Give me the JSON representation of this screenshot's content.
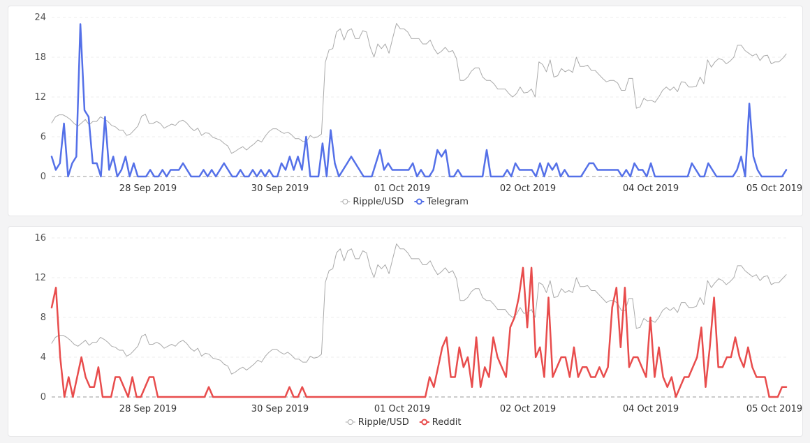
{
  "chart_data": [
    {
      "type": "line",
      "x_labels": [
        "28 Sep 2019",
        "30 Sep 2019",
        "01 Oct 2019",
        "02 Oct 2019",
        "04 Oct 2019",
        "05 Oct 2019"
      ],
      "yticks": [
        "0",
        "6",
        "12",
        "18",
        "24"
      ],
      "ylim": [
        0,
        24
      ],
      "grid": true,
      "legend_position": "bottom-center",
      "series": [
        {
          "name": "Ripple/USD",
          "color": "#aaaaaa",
          "values": [
            8.1,
            9.0,
            9.3,
            9.3,
            9.0,
            8.6,
            8.0,
            7.6,
            8.1,
            8.6,
            7.8,
            8.3,
            8.3,
            9.0,
            8.7,
            8.3,
            7.7,
            7.5,
            7.0,
            7.0,
            6.2,
            6.4,
            7.0,
            7.6,
            9.1,
            9.4,
            8.0,
            8.0,
            8.3,
            8.0,
            7.3,
            7.6,
            7.9,
            7.7,
            8.3,
            8.5,
            8.1,
            7.4,
            6.9,
            7.3,
            6.2,
            6.6,
            6.5,
            5.9,
            5.7,
            5.5,
            5.0,
            4.6,
            3.5,
            3.8,
            4.2,
            4.5,
            4.0,
            4.5,
            4.9,
            5.5,
            5.2,
            6.1,
            6.8,
            7.2,
            7.2,
            6.8,
            6.5,
            6.7,
            6.3,
            5.7,
            5.7,
            5.3,
            5.3,
            6.2,
            5.8,
            6.0,
            6.4,
            17.2,
            19.1,
            19.3,
            21.8,
            22.3,
            20.6,
            22.0,
            22.3,
            20.8,
            20.8,
            22.0,
            21.8,
            19.5,
            18.0,
            20.0,
            19.3,
            20.0,
            18.6,
            20.9,
            23.1,
            22.3,
            22.3,
            21.8,
            20.8,
            20.8,
            20.8,
            20.0,
            20.0,
            20.6,
            19.3,
            18.5,
            18.9,
            19.5,
            18.8,
            19.0,
            17.8,
            14.5,
            14.5,
            15.0,
            15.9,
            16.4,
            16.4,
            15.0,
            14.5,
            14.5,
            14.0,
            13.2,
            13.2,
            13.2,
            12.5,
            12.0,
            12.5,
            13.5,
            12.6,
            12.7,
            13.2,
            12.0,
            17.3,
            16.9,
            15.8,
            17.6,
            15.0,
            15.2,
            16.3,
            15.8,
            16.1,
            15.7,
            18.0,
            16.6,
            16.6,
            16.8,
            16.0,
            16.0,
            15.4,
            14.8,
            14.3,
            14.5,
            14.5,
            14.1,
            13.0,
            13.0,
            14.8,
            14.8,
            10.3,
            10.5,
            11.8,
            11.4,
            11.5,
            11.2,
            12.0,
            13.0,
            13.5,
            13.0,
            13.5,
            12.8,
            14.3,
            14.2,
            13.5,
            13.5,
            13.6,
            15.0,
            14.0,
            17.6,
            16.5,
            17.3,
            17.8,
            17.6,
            17.0,
            17.4,
            18.0,
            19.8,
            19.8,
            19.0,
            18.6,
            18.2,
            18.5,
            17.5,
            18.2,
            18.3,
            17.0,
            17.3,
            17.3,
            17.8,
            18.5
          ]
        },
        {
          "name": "Telegram",
          "color": "#5470e8",
          "values": [
            3,
            1,
            2,
            8,
            0,
            2,
            3,
            23,
            10,
            9,
            2,
            2,
            0,
            9,
            1,
            3,
            0,
            1,
            3,
            0,
            2,
            0,
            0,
            0,
            1,
            0,
            0,
            1,
            0,
            1,
            1,
            1,
            2,
            1,
            0,
            0,
            0,
            1,
            0,
            1,
            0,
            1,
            2,
            1,
            0,
            0,
            1,
            0,
            0,
            1,
            0,
            1,
            0,
            1,
            0,
            0,
            2,
            1,
            3,
            1,
            3,
            1,
            6,
            0,
            0,
            0,
            5,
            0,
            7,
            2,
            0,
            1,
            2,
            3,
            2,
            1,
            0,
            0,
            0,
            2,
            4,
            1,
            2,
            1,
            1,
            1,
            1,
            1,
            2,
            0,
            1,
            0,
            0,
            1,
            4,
            3,
            4,
            0,
            0,
            1,
            0,
            0,
            0,
            0,
            0,
            0,
            4,
            0,
            0,
            0,
            0,
            1,
            0,
            2,
            1,
            1,
            1,
            1,
            0,
            2,
            0,
            2,
            1,
            2,
            0,
            1,
            0,
            0,
            0,
            0,
            1,
            2,
            2,
            1,
            1,
            1,
            1,
            1,
            1,
            0,
            1,
            0,
            2,
            1,
            1,
            0,
            2,
            0,
            0,
            0,
            0,
            0,
            0,
            0,
            0,
            0,
            2,
            1,
            0,
            0,
            2,
            1,
            0,
            0,
            0,
            0,
            0,
            1,
            3,
            0,
            11,
            3,
            1,
            0,
            0,
            0,
            0,
            0,
            0,
            1
          ]
        }
      ]
    },
    {
      "type": "line",
      "x_labels": [
        "28 Sep 2019",
        "30 Sep 2019",
        "01 Oct 2019",
        "02 Oct 2019",
        "04 Oct 2019",
        "05 Oct 2019"
      ],
      "yticks": [
        "0",
        "4",
        "8",
        "12",
        "16"
      ],
      "ylim": [
        0,
        16
      ],
      "grid": true,
      "legend_position": "bottom-center",
      "series": [
        {
          "name": "Ripple/USD",
          "color": "#aaaaaa",
          "values": [
            5.4,
            6.0,
            6.2,
            6.2,
            6.0,
            5.7,
            5.3,
            5.1,
            5.4,
            5.7,
            5.2,
            5.5,
            5.5,
            6.0,
            5.8,
            5.5,
            5.1,
            5.0,
            4.7,
            4.7,
            4.1,
            4.3,
            4.7,
            5.1,
            6.1,
            6.3,
            5.3,
            5.3,
            5.5,
            5.3,
            4.9,
            5.1,
            5.3,
            5.1,
            5.5,
            5.7,
            5.4,
            4.9,
            4.6,
            4.9,
            4.1,
            4.4,
            4.3,
            3.9,
            3.8,
            3.7,
            3.3,
            3.1,
            2.3,
            2.5,
            2.8,
            3.0,
            2.7,
            3.0,
            3.3,
            3.7,
            3.5,
            4.1,
            4.5,
            4.8,
            4.8,
            4.5,
            4.3,
            4.5,
            4.2,
            3.8,
            3.8,
            3.5,
            3.5,
            4.1,
            3.9,
            4.0,
            4.3,
            11.5,
            12.7,
            12.9,
            14.5,
            14.9,
            13.7,
            14.7,
            14.9,
            13.9,
            13.9,
            14.7,
            14.5,
            13.0,
            12.0,
            13.3,
            12.9,
            13.3,
            12.4,
            13.9,
            15.4,
            14.9,
            14.9,
            14.5,
            13.9,
            13.9,
            13.9,
            13.3,
            13.3,
            13.7,
            12.9,
            12.3,
            12.6,
            13.0,
            12.5,
            12.7,
            11.9,
            9.7,
            9.7,
            10.0,
            10.6,
            10.9,
            10.9,
            10.0,
            9.7,
            9.7,
            9.3,
            8.8,
            8.8,
            8.8,
            8.3,
            8.0,
            8.3,
            9.0,
            8.4,
            8.5,
            8.8,
            8.0,
            11.5,
            11.3,
            10.5,
            11.7,
            10.0,
            10.1,
            10.9,
            10.5,
            10.7,
            10.5,
            12.0,
            11.1,
            11.1,
            11.2,
            10.7,
            10.7,
            10.3,
            9.9,
            9.5,
            9.7,
            9.7,
            9.4,
            8.7,
            8.7,
            9.9,
            9.9,
            6.9,
            7.0,
            7.9,
            7.6,
            7.7,
            7.5,
            8.0,
            8.7,
            9.0,
            8.7,
            9.0,
            8.5,
            9.5,
            9.5,
            9.0,
            9.0,
            9.1,
            10.0,
            9.3,
            11.7,
            11.0,
            11.5,
            11.9,
            11.7,
            11.3,
            11.6,
            12.0,
            13.2,
            13.2,
            12.7,
            12.4,
            12.1,
            12.3,
            11.7,
            12.1,
            12.2,
            11.3,
            11.5,
            11.5,
            11.9,
            12.3
          ]
        },
        {
          "name": "Reddit",
          "color": "#e84c4c",
          "values": [
            9,
            11,
            4,
            0,
            2,
            0,
            2,
            4,
            2,
            1,
            1,
            3,
            0,
            0,
            0,
            2,
            2,
            1,
            0,
            2,
            0,
            0,
            1,
            2,
            2,
            0,
            0,
            0,
            0,
            0,
            0,
            0,
            0,
            0,
            0,
            0,
            0,
            1,
            0,
            0,
            0,
            0,
            0,
            0,
            0,
            0,
            0,
            0,
            0,
            0,
            0,
            0,
            0,
            0,
            0,
            0,
            1,
            0,
            0,
            1,
            0,
            0,
            0,
            0,
            0,
            0,
            0,
            0,
            0,
            0,
            0,
            0,
            0,
            0,
            0,
            0,
            0,
            0,
            0,
            0,
            0,
            0,
            0,
            0,
            0,
            0,
            0,
            0,
            0,
            2,
            1,
            3,
            5,
            6,
            2,
            2,
            5,
            3,
            4,
            1,
            6,
            1,
            3,
            2,
            6,
            4,
            3,
            2,
            7,
            8,
            10,
            13,
            7,
            13,
            4,
            5,
            2,
            10,
            2,
            3,
            4,
            4,
            2,
            5,
            2,
            3,
            3,
            2,
            2,
            3,
            2,
            3,
            9,
            11,
            5,
            11,
            3,
            4,
            4,
            3,
            2,
            8,
            2,
            5,
            2,
            1,
            2,
            0,
            1,
            2,
            2,
            3,
            4,
            7,
            1,
            5,
            10,
            3,
            3,
            4,
            4,
            6,
            4,
            3,
            5,
            3,
            2,
            2,
            2,
            0,
            0,
            0,
            1,
            1
          ]
        }
      ]
    }
  ]
}
